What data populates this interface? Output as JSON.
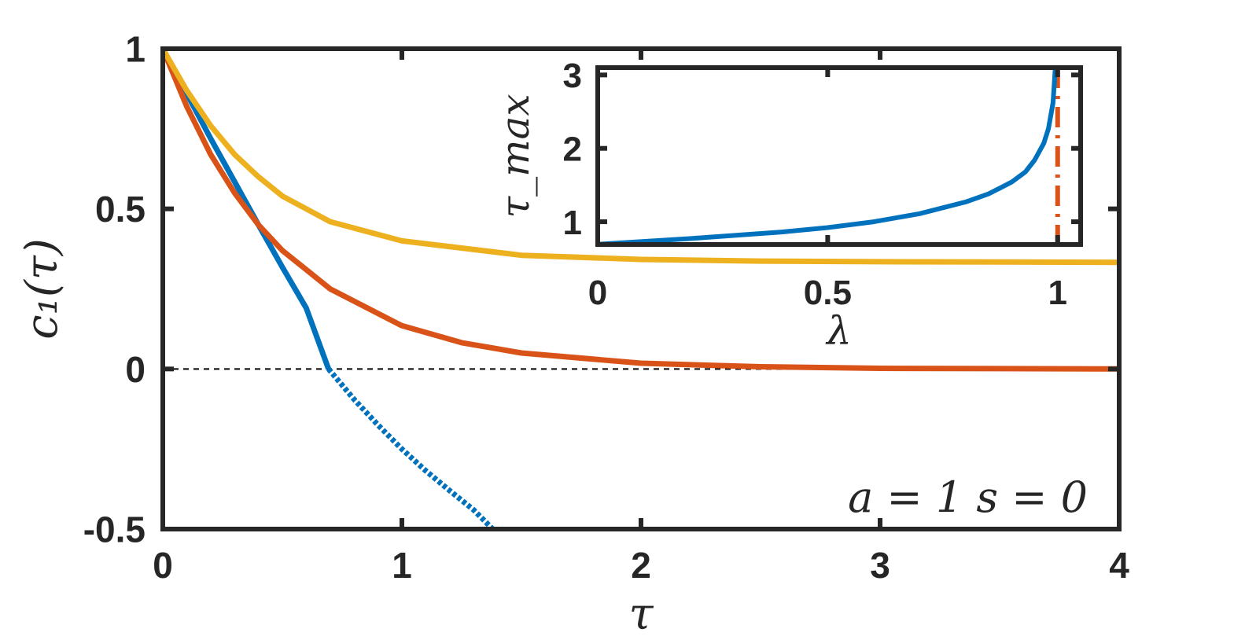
{
  "chart_data": [
    {
      "type": "line",
      "xlabel": "τ",
      "ylabel": "c₁(τ)",
      "xlim": [
        0,
        4
      ],
      "ylim": [
        -0.5,
        1
      ],
      "xticks": [
        0,
        1,
        2,
        3,
        4
      ],
      "xtick_labels": [
        "0",
        "1",
        "2",
        "3",
        "4"
      ],
      "yticks": [
        -0.5,
        0,
        0.5,
        1
      ],
      "ytick_labels": [
        "-0.5",
        "0",
        "0.5",
        "1"
      ],
      "annotation": "a = 1  s = 0",
      "reference_lines": [
        {
          "axis": "y",
          "value": 0,
          "style": "dashed",
          "color": "#000000"
        }
      ],
      "series": [
        {
          "color": "#0072BD",
          "style": "solid",
          "x": [
            0,
            0.1,
            0.2,
            0.3,
            0.4,
            0.5,
            0.6,
            0.693
          ],
          "y": [
            1,
            0.86,
            0.72,
            0.585,
            0.45,
            0.318,
            0.19,
            0
          ]
        },
        {
          "color": "#0072BD",
          "style": "dotted",
          "x": [
            0.693,
            0.8,
            0.9,
            1.0,
            1.1,
            1.2,
            1.3,
            1.38
          ],
          "y": [
            0,
            -0.095,
            -0.175,
            -0.25,
            -0.318,
            -0.38,
            -0.44,
            -0.5
          ]
        },
        {
          "color": "#D95319",
          "style": "solid",
          "x": [
            0,
            0.1,
            0.2,
            0.3,
            0.4,
            0.5,
            0.7,
            1.0,
            1.25,
            1.5,
            2.0,
            2.5,
            3.0,
            3.5,
            4.0
          ],
          "y": [
            1,
            0.82,
            0.67,
            0.55,
            0.45,
            0.37,
            0.25,
            0.135,
            0.082,
            0.05,
            0.018,
            0.007,
            0.002,
            0.001,
            0
          ]
        },
        {
          "color": "#EDB120",
          "style": "solid",
          "x": [
            0,
            0.1,
            0.2,
            0.3,
            0.4,
            0.5,
            0.7,
            1.0,
            1.5,
            2.0,
            2.5,
            3.0,
            4.0
          ],
          "y": [
            1,
            0.87,
            0.76,
            0.67,
            0.6,
            0.54,
            0.46,
            0.4,
            0.355,
            0.342,
            0.337,
            0.335,
            0.333
          ]
        }
      ]
    },
    {
      "type": "line",
      "xlabel": "λ",
      "ylabel": "τ_max",
      "xlim": [
        0,
        1.05
      ],
      "ylim": [
        0.69,
        3.1
      ],
      "xticks": [
        0,
        0.5,
        1
      ],
      "xtick_labels": [
        "0",
        "0.5",
        "1"
      ],
      "yticks": [
        1,
        2,
        3
      ],
      "ytick_labels": [
        "1",
        "2",
        "3"
      ],
      "reference_lines": [
        {
          "axis": "x",
          "value": 1,
          "style": "dash-dot",
          "color": "#D95319"
        }
      ],
      "series": [
        {
          "color": "#0072BD",
          "style": "solid",
          "x": [
            0,
            0.2,
            0.4,
            0.5,
            0.6,
            0.7,
            0.8,
            0.85,
            0.9,
            0.93,
            0.95,
            0.97,
            0.98,
            0.99,
            0.995
          ],
          "y": [
            0.693,
            0.77,
            0.86,
            0.92,
            1.0,
            1.11,
            1.27,
            1.38,
            1.54,
            1.68,
            1.84,
            2.07,
            2.27,
            2.62,
            3.1
          ]
        }
      ]
    }
  ]
}
